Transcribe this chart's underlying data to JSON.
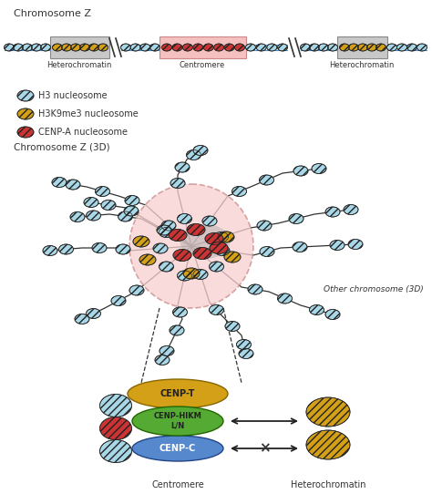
{
  "title": "Chromosome Z",
  "bg_color": "#ffffff",
  "hetero_color": "#c8c8c8",
  "centro_color": "#f5c0c0",
  "h3_color": "#a8d8e8",
  "h3k9_color": "#d4a017",
  "cenp_a_color": "#cc3333",
  "cenp_t_color": "#d4a017",
  "cenp_hikm_color": "#55aa33",
  "cenp_c_color": "#5588cc",
  "chr3d_label": "Chromosome Z (3D)",
  "other_chr_label": "Other chromosome (3D)",
  "centro_bottom_label": "Centromere",
  "hetero_bottom_label": "Heterochromatin",
  "legend_h3": "H3 nucleosome",
  "legend_h3k9": "H3K9me3 nucleosome",
  "legend_cenpa": "CENP-A nucleosome"
}
